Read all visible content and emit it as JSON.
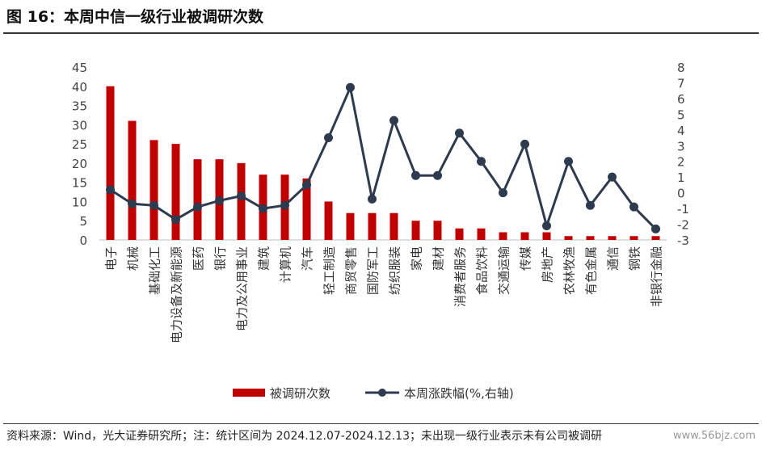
{
  "figure": {
    "title": "图 16：本周中信一级行业被调研次数",
    "source_note": "资料来源：Wind，光大证券研究所；注：统计区间为 2024.12.07-2024.12.13；未出现一级行业表示未有公司被调研",
    "watermark": "www.56bjz.com"
  },
  "chart_data": {
    "type": "bar",
    "title": "",
    "categories": [
      "电子",
      "机械",
      "基础化工",
      "电力设备及新能源",
      "医药",
      "银行",
      "电力及公用事业",
      "建筑",
      "计算机",
      "汽车",
      "轻工制造",
      "商贸零售",
      "国防军工",
      "纺织服装",
      "家电",
      "建材",
      "消费者服务",
      "食品饮料",
      "交通运输",
      "传媒",
      "房地产",
      "农林牧渔",
      "有色金属",
      "通信",
      "钢铁",
      "非银行金融"
    ],
    "series": [
      {
        "name": "被调研次数",
        "type": "bar",
        "axis": "left",
        "color": "#C00000",
        "values": [
          40,
          31,
          26,
          25,
          21,
          21,
          20,
          17,
          17,
          16,
          10,
          7,
          7,
          7,
          5,
          5,
          3,
          3,
          2,
          2,
          2,
          1,
          1,
          1,
          1,
          1
        ]
      },
      {
        "name": "本周涨跌幅(%,右轴)",
        "type": "line",
        "axis": "right",
        "color": "#2E3B4E",
        "values": [
          0.2,
          -0.7,
          -0.8,
          -1.7,
          -0.9,
          -0.5,
          -0.2,
          -1.0,
          -0.8,
          0.5,
          3.5,
          6.7,
          -0.4,
          4.6,
          1.1,
          1.1,
          3.8,
          2.0,
          0.0,
          3.1,
          -2.1,
          2.0,
          -0.8,
          1.0,
          -0.9,
          -2.3
        ]
      }
    ],
    "y_left": {
      "min": 0,
      "max": 45,
      "ticks": [
        0,
        5,
        10,
        15,
        20,
        25,
        30,
        35,
        40,
        45
      ]
    },
    "y_right": {
      "min": -3,
      "max": 8,
      "ticks": [
        -3,
        -2,
        -1,
        0,
        1,
        2,
        3,
        4,
        5,
        6,
        7,
        8
      ]
    },
    "grid": false,
    "legend_position": "bottom"
  }
}
